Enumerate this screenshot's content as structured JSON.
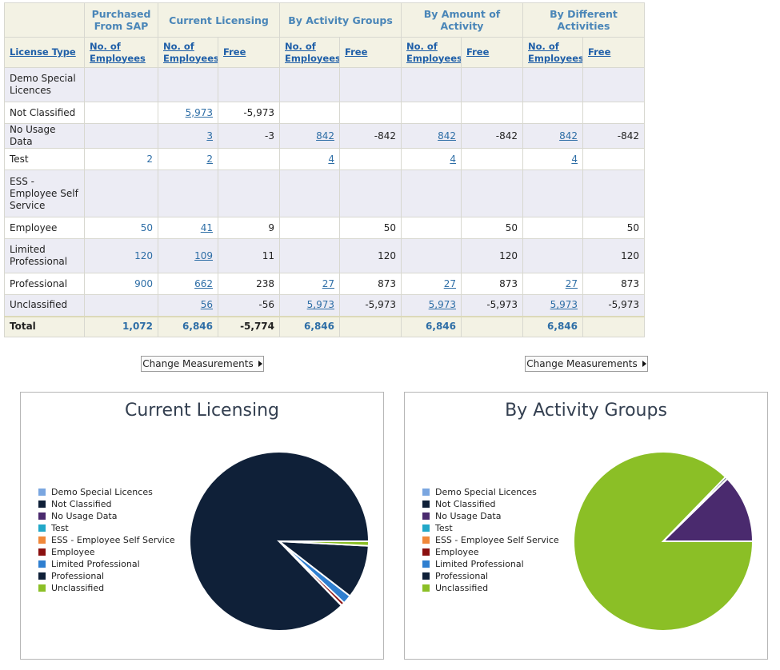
{
  "table": {
    "groups": [
      "Purchased From SAP",
      "Current Licensing",
      "By Activity Groups",
      "By Amount of Activity",
      "By Different Activities"
    ],
    "license_type_header": "License Type",
    "no_employees_header": "No. of Employees",
    "free_header": "Free",
    "rows": [
      {
        "label": "Demo Special Licences",
        "cells": [
          "",
          "",
          "",
          "",
          "",
          "",
          "",
          "",
          ""
        ]
      },
      {
        "label": "Not Classified",
        "cells": [
          "",
          "5,973",
          "-5,973",
          "",
          "",
          "",
          "",
          "",
          ""
        ]
      },
      {
        "label": "No Usage Data",
        "cells": [
          "",
          "3",
          "-3",
          "842",
          "-842",
          "842",
          "-842",
          "842",
          "-842"
        ]
      },
      {
        "label": "Test",
        "cells": [
          "2",
          "2",
          "",
          "4",
          "",
          "4",
          "",
          "4",
          ""
        ]
      },
      {
        "label": "ESS - Employee Self Service",
        "cells": [
          "",
          "",
          "",
          "",
          "",
          "",
          "",
          "",
          ""
        ]
      },
      {
        "label": "Employee",
        "cells": [
          "50",
          "41",
          "9",
          "",
          "50",
          "",
          "50",
          "",
          "50"
        ]
      },
      {
        "label": "Limited Professional",
        "cells": [
          "120",
          "109",
          "11",
          "",
          "120",
          "",
          "120",
          "",
          "120"
        ]
      },
      {
        "label": "Professional",
        "cells": [
          "900",
          "662",
          "238",
          "27",
          "873",
          "27",
          "873",
          "27",
          "873"
        ]
      },
      {
        "label": "Unclassified",
        "cells": [
          "",
          "56",
          "-56",
          "5,973",
          "-5,973",
          "5,973",
          "-5,973",
          "5,973",
          "-5,973"
        ]
      }
    ],
    "total": {
      "label": "Total",
      "cells": [
        "1,072",
        "6,846",
        "-5,774",
        "6,846",
        "",
        "6,846",
        "",
        "6,846",
        ""
      ]
    }
  },
  "buttons": {
    "change_measurements": "Change Measurements"
  },
  "legend_items": [
    {
      "label": "Demo Special Licences",
      "color": "#7aa6e0"
    },
    {
      "label": "Not Classified",
      "color": "#0f2038"
    },
    {
      "label": "No Usage Data",
      "color": "#4a2a6e"
    },
    {
      "label": "Test",
      "color": "#22a8c8"
    },
    {
      "label": "ESS - Employee Self Service",
      "color": "#f0883a"
    },
    {
      "label": "Employee",
      "color": "#8b1010"
    },
    {
      "label": "Limited Professional",
      "color": "#2f7fd0"
    },
    {
      "label": "Professional",
      "color": "#0f2038"
    },
    {
      "label": "Unclassified",
      "color": "#8bbf26"
    }
  ],
  "chart_data": [
    {
      "type": "pie",
      "title": "Current Licensing",
      "categories": [
        "Demo Special Licences",
        "Not Classified",
        "No Usage Data",
        "Test",
        "ESS - Employee Self Service",
        "Employee",
        "Limited Professional",
        "Professional",
        "Unclassified"
      ],
      "values": [
        0,
        5973,
        3,
        2,
        0,
        41,
        109,
        662,
        56
      ],
      "legend": "left"
    },
    {
      "type": "pie",
      "title": "By Activity Groups",
      "categories": [
        "Demo Special Licences",
        "Not Classified",
        "No Usage Data",
        "Test",
        "ESS - Employee Self Service",
        "Employee",
        "Limited Professional",
        "Professional",
        "Unclassified"
      ],
      "values": [
        0,
        0,
        842,
        4,
        0,
        0,
        0,
        27,
        5973
      ],
      "legend": "left"
    }
  ]
}
